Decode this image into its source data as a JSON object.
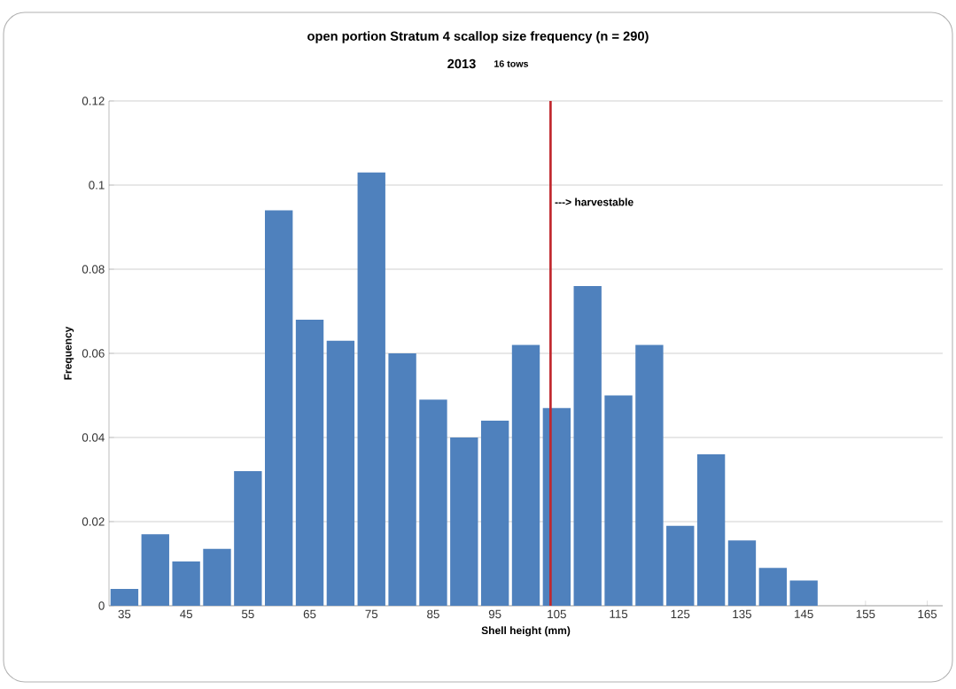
{
  "chart_data": {
    "type": "bar",
    "title": "open portion Stratum 4 scallop size frequency (n = 290)",
    "subtitle": "2013",
    "annotations": [
      "16 tows"
    ],
    "xlabel": "Shell height (mm)",
    "ylabel": "Frequency",
    "x": [
      35,
      40,
      45,
      50,
      55,
      60,
      65,
      70,
      75,
      80,
      85,
      90,
      95,
      100,
      105,
      110,
      115,
      120,
      125,
      130,
      135,
      140,
      145,
      150,
      155,
      160,
      165
    ],
    "values": [
      0.004,
      0.017,
      0.0105,
      0.0135,
      0.032,
      0.094,
      0.068,
      0.063,
      0.103,
      0.06,
      0.049,
      0.04,
      0.044,
      0.062,
      0.047,
      0.076,
      0.05,
      0.062,
      0.019,
      0.036,
      0.0155,
      0.009,
      0.006,
      0,
      0,
      0,
      0
    ],
    "color": "#4f81bd",
    "xlim": [
      32.5,
      167.5
    ],
    "xticks": [
      35,
      45,
      55,
      65,
      75,
      85,
      95,
      105,
      115,
      125,
      135,
      145,
      155,
      165
    ],
    "ylim": [
      0,
      0.12
    ],
    "yticks": [
      0,
      0.02,
      0.04,
      0.06,
      0.08,
      0.1,
      0.12
    ],
    "grid": "y",
    "ref_lines": [
      {
        "axis": "x",
        "value": 104,
        "label": "---> harvestable",
        "color": "#c0272d"
      }
    ]
  }
}
